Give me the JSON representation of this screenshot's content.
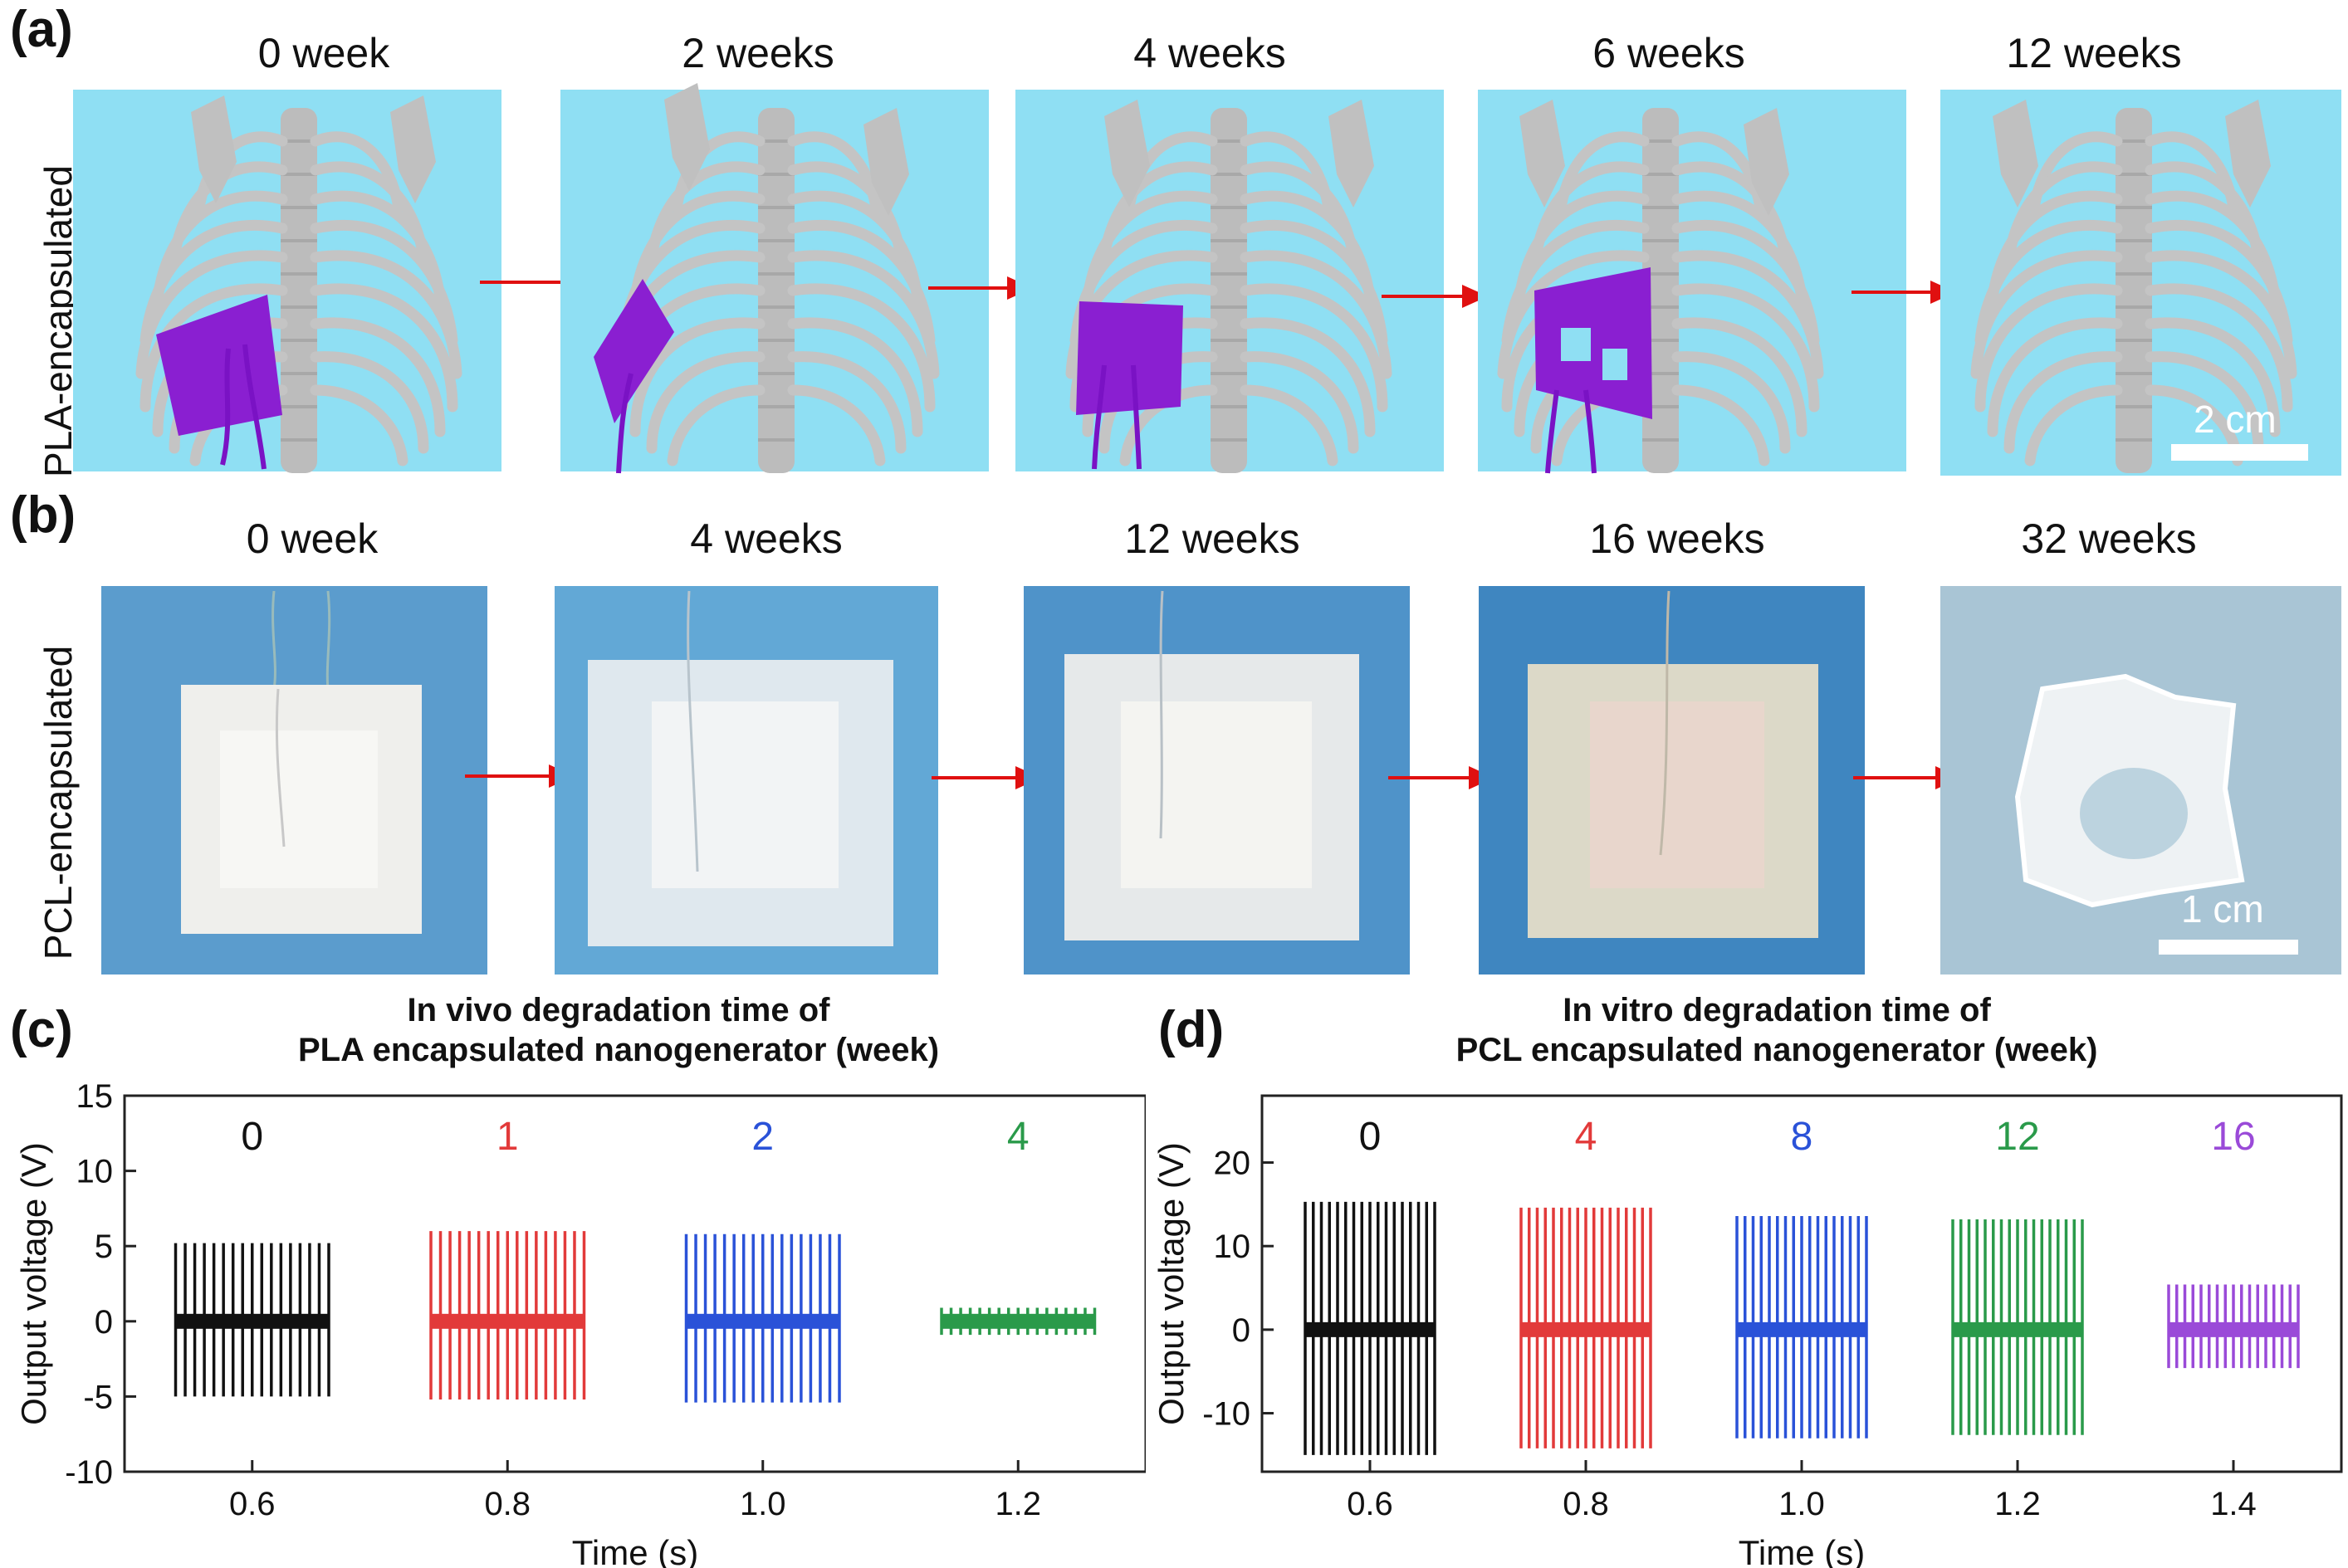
{
  "panel_a": {
    "label": "(a)",
    "row_label": "PLA-encapsulated",
    "weeks": [
      "0 week",
      "2 weeks",
      "4 weeks",
      "6 weeks",
      "12 weeks"
    ],
    "scale_bar": "2 cm",
    "colors": {
      "background": "#8fdff3",
      "bone": "#c8c8c8",
      "device": "#8a1fd1",
      "arrow": "#e01010"
    }
  },
  "panel_b": {
    "label": "(b)",
    "row_label": "PCL-encapsulated",
    "weeks": [
      "0 week",
      "4 weeks",
      "12 weeks",
      "16 weeks",
      "32 weeks"
    ],
    "scale_bar": "1 cm",
    "colors": {
      "background": "#4f93c9",
      "film": "#eeeeea",
      "arrow": "#e01010"
    }
  },
  "chart_data": [
    {
      "panel": "(c)",
      "type": "line",
      "title": "In vivo degradation time of\nPLA encapsulated nanogenerator (week)",
      "title_line1": "In vivo degradation time of",
      "title_line2": "PLA encapsulated nanogenerator (week)",
      "xlabel": "Time (s)",
      "ylabel": "Output voltage (V)",
      "xlim": [
        0.5,
        1.3
      ],
      "ylim": [
        -10,
        15
      ],
      "xticks": [
        0.6,
        0.8,
        1.0,
        1.2
      ],
      "xtick_labels": [
        "0.6",
        "0.8",
        "1.0",
        "1.2"
      ],
      "yticks": [
        -10,
        -5,
        0,
        5,
        10,
        15
      ],
      "ytick_labels": [
        "-10",
        "-5",
        "0",
        "5",
        "10",
        "15"
      ],
      "series": [
        {
          "name": "0",
          "color": "#111111",
          "x_start": 0.54,
          "x_end": 0.66,
          "pos_peak": 5.2,
          "neg_peak": -5.0,
          "pulses": 17
        },
        {
          "name": "1",
          "color": "#e23a3a",
          "x_start": 0.74,
          "x_end": 0.86,
          "pos_peak": 6.0,
          "neg_peak": -5.2,
          "pulses": 17
        },
        {
          "name": "2",
          "color": "#2a52d8",
          "x_start": 0.94,
          "x_end": 1.06,
          "pos_peak": 5.8,
          "neg_peak": -5.4,
          "pulses": 17
        },
        {
          "name": "4",
          "color": "#2a9a4a",
          "x_start": 1.14,
          "x_end": 1.26,
          "pos_peak": 0.9,
          "neg_peak": -0.9,
          "pulses": 17
        }
      ]
    },
    {
      "panel": "(d)",
      "type": "line",
      "title": "In vitro degradation time of\nPCL encapsulated nanogenerator (week)",
      "title_line1": "In vitro degradation time of",
      "title_line2": "PCL encapsulated nanogenerator (week)",
      "xlabel": "Time (s)",
      "ylabel": "Output voltage (V)",
      "xlim": [
        0.5,
        1.5
      ],
      "ylim": [
        -17,
        28
      ],
      "xticks": [
        0.6,
        0.8,
        1.0,
        1.2,
        1.4
      ],
      "xtick_labels": [
        "0.6",
        "0.8",
        "1.0",
        "1.2",
        "1.4"
      ],
      "yticks": [
        -10,
        0,
        10,
        20
      ],
      "ytick_labels": [
        "-10",
        "0",
        "10",
        "20"
      ],
      "series": [
        {
          "name": "0",
          "color": "#111111",
          "x_start": 0.54,
          "x_end": 0.66,
          "pos_peak": 15.3,
          "neg_peak": -15.0,
          "pulses": 17
        },
        {
          "name": "4",
          "color": "#e23a3a",
          "x_start": 0.74,
          "x_end": 0.86,
          "pos_peak": 14.6,
          "neg_peak": -14.2,
          "pulses": 17
        },
        {
          "name": "8",
          "color": "#2a52d8",
          "x_start": 0.94,
          "x_end": 1.06,
          "pos_peak": 13.6,
          "neg_peak": -13.0,
          "pulses": 17
        },
        {
          "name": "12",
          "color": "#2a9a4a",
          "x_start": 1.14,
          "x_end": 1.26,
          "pos_peak": 13.2,
          "neg_peak": -12.6,
          "pulses": 17
        },
        {
          "name": "16",
          "color": "#9a4ad8",
          "x_start": 1.34,
          "x_end": 1.46,
          "pos_peak": 5.4,
          "neg_peak": -4.6,
          "pulses": 17
        }
      ]
    }
  ]
}
